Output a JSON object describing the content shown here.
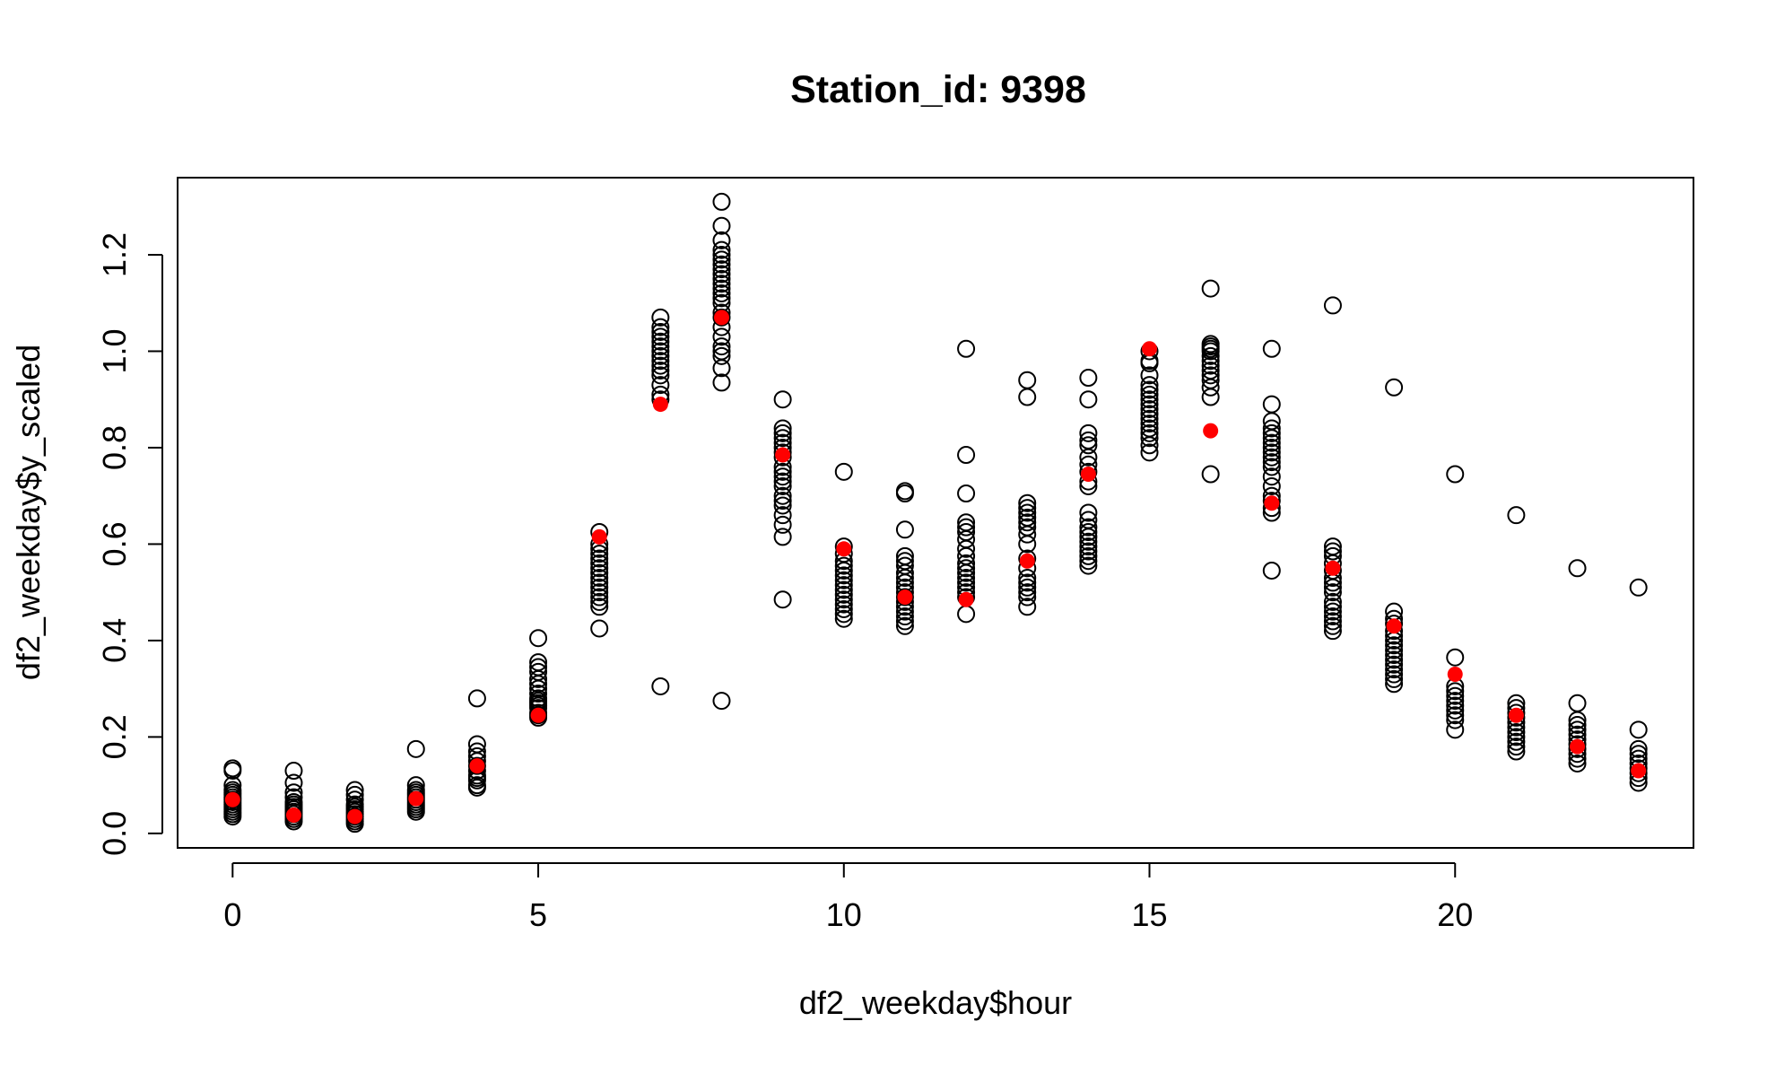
{
  "chart_data": {
    "type": "scatter",
    "title": "Station_id: 9398",
    "xlabel": "df2_weekday$hour",
    "ylabel": "df2_weekday$y_scaled",
    "xlim": [
      -0.9,
      23.9
    ],
    "ylim": [
      -0.03,
      1.36
    ],
    "x_ticks": [
      0,
      5,
      10,
      15,
      20
    ],
    "y_ticks": [
      0.0,
      0.2,
      0.4,
      0.6,
      0.8,
      1.0,
      1.2
    ],
    "x_tick_labels": [
      "0",
      "5",
      "10",
      "15",
      "20"
    ],
    "y_tick_labels": [
      "0.0",
      "0.2",
      "0.4",
      "0.6",
      "0.8",
      "1.0",
      "1.2"
    ],
    "grid": false,
    "legend": "none",
    "series": [
      {
        "marker": "open-circle",
        "color": "#000000",
        "by_hour": [
          {
            "x": 0,
            "y": [
              0.035,
              0.04,
              0.045,
              0.05,
              0.055,
              0.06,
              0.065,
              0.07,
              0.075,
              0.08,
              0.085,
              0.09,
              0.1,
              0.13,
              0.135
            ]
          },
          {
            "x": 1,
            "y": [
              0.025,
              0.03,
              0.035,
              0.04,
              0.045,
              0.05,
              0.055,
              0.06,
              0.065,
              0.075,
              0.085,
              0.105,
              0.13
            ]
          },
          {
            "x": 2,
            "y": [
              0.02,
              0.025,
              0.03,
              0.035,
              0.04,
              0.045,
              0.05,
              0.055,
              0.06,
              0.07,
              0.08,
              0.09
            ]
          },
          {
            "x": 3,
            "y": [
              0.045,
              0.05,
              0.055,
              0.06,
              0.065,
              0.07,
              0.075,
              0.08,
              0.085,
              0.09,
              0.1,
              0.175
            ]
          },
          {
            "x": 4,
            "y": [
              0.095,
              0.1,
              0.11,
              0.115,
              0.12,
              0.13,
              0.14,
              0.15,
              0.16,
              0.17,
              0.185,
              0.28
            ]
          },
          {
            "x": 5,
            "y": [
              0.24,
              0.245,
              0.25,
              0.26,
              0.265,
              0.27,
              0.275,
              0.28,
              0.29,
              0.3,
              0.31,
              0.32,
              0.335,
              0.345,
              0.355,
              0.405
            ]
          },
          {
            "x": 6,
            "y": [
              0.425,
              0.47,
              0.48,
              0.49,
              0.5,
              0.51,
              0.52,
              0.53,
              0.54,
              0.55,
              0.56,
              0.57,
              0.58,
              0.59,
              0.6,
              0.625
            ]
          },
          {
            "x": 7,
            "y": [
              0.305,
              0.9,
              0.91,
              0.93,
              0.95,
              0.96,
              0.97,
              0.98,
              0.99,
              1.0,
              1.01,
              1.02,
              1.03,
              1.04,
              1.05,
              1.07
            ]
          },
          {
            "x": 8,
            "y": [
              0.275,
              0.935,
              0.965,
              0.99,
              1.0,
              1.01,
              1.03,
              1.05,
              1.07,
              1.08,
              1.1,
              1.11,
              1.12,
              1.13,
              1.14,
              1.15,
              1.16,
              1.17,
              1.18,
              1.19,
              1.2,
              1.21,
              1.23,
              1.26,
              1.31
            ]
          },
          {
            "x": 9,
            "y": [
              0.485,
              0.615,
              0.64,
              0.66,
              0.68,
              0.69,
              0.7,
              0.72,
              0.73,
              0.74,
              0.75,
              0.76,
              0.78,
              0.79,
              0.8,
              0.81,
              0.82,
              0.83,
              0.84,
              0.9
            ]
          },
          {
            "x": 10,
            "y": [
              0.445,
              0.455,
              0.465,
              0.475,
              0.485,
              0.495,
              0.505,
              0.515,
              0.525,
              0.535,
              0.545,
              0.555,
              0.565,
              0.58,
              0.595,
              0.75
            ]
          },
          {
            "x": 11,
            "y": [
              0.43,
              0.44,
              0.45,
              0.46,
              0.47,
              0.48,
              0.49,
              0.5,
              0.51,
              0.52,
              0.53,
              0.54,
              0.555,
              0.565,
              0.575,
              0.63,
              0.705,
              0.71
            ]
          },
          {
            "x": 12,
            "y": [
              0.455,
              0.49,
              0.5,
              0.51,
              0.52,
              0.53,
              0.54,
              0.55,
              0.56,
              0.575,
              0.59,
              0.61,
              0.625,
              0.635,
              0.645,
              0.705,
              0.785,
              1.005
            ]
          },
          {
            "x": 13,
            "y": [
              0.47,
              0.49,
              0.5,
              0.51,
              0.52,
              0.53,
              0.55,
              0.57,
              0.6,
              0.62,
              0.635,
              0.645,
              0.655,
              0.665,
              0.675,
              0.685,
              0.905,
              0.94
            ]
          },
          {
            "x": 14,
            "y": [
              0.555,
              0.565,
              0.575,
              0.585,
              0.595,
              0.605,
              0.615,
              0.625,
              0.635,
              0.65,
              0.665,
              0.72,
              0.73,
              0.75,
              0.765,
              0.78,
              0.805,
              0.815,
              0.83,
              0.9,
              0.945
            ]
          },
          {
            "x": 15,
            "y": [
              0.79,
              0.805,
              0.82,
              0.83,
              0.84,
              0.85,
              0.86,
              0.87,
              0.88,
              0.89,
              0.9,
              0.91,
              0.92,
              0.93,
              0.95,
              0.975,
              0.98,
              1.0
            ]
          },
          {
            "x": 16,
            "y": [
              0.745,
              0.905,
              0.925,
              0.94,
              0.95,
              0.96,
              0.97,
              0.98,
              0.99,
              1.0,
              1.005,
              1.01,
              1.015,
              1.13
            ]
          },
          {
            "x": 17,
            "y": [
              0.545,
              0.665,
              0.675,
              0.69,
              0.7,
              0.72,
              0.74,
              0.76,
              0.77,
              0.78,
              0.79,
              0.8,
              0.81,
              0.82,
              0.83,
              0.84,
              0.855,
              0.89,
              1.005
            ]
          },
          {
            "x": 18,
            "y": [
              0.42,
              0.43,
              0.44,
              0.45,
              0.46,
              0.47,
              0.48,
              0.5,
              0.51,
              0.52,
              0.53,
              0.545,
              0.56,
              0.575,
              0.585,
              0.595,
              1.095
            ]
          },
          {
            "x": 19,
            "y": [
              0.31,
              0.32,
              0.33,
              0.34,
              0.35,
              0.36,
              0.37,
              0.38,
              0.39,
              0.4,
              0.41,
              0.42,
              0.435,
              0.445,
              0.46,
              0.925
            ]
          },
          {
            "x": 20,
            "y": [
              0.215,
              0.235,
              0.245,
              0.255,
              0.265,
              0.275,
              0.285,
              0.295,
              0.305,
              0.365,
              0.745
            ]
          },
          {
            "x": 21,
            "y": [
              0.17,
              0.18,
              0.19,
              0.2,
              0.21,
              0.22,
              0.23,
              0.24,
              0.25,
              0.26,
              0.27,
              0.66
            ]
          },
          {
            "x": 22,
            "y": [
              0.145,
              0.155,
              0.165,
              0.175,
              0.185,
              0.195,
              0.205,
              0.215,
              0.225,
              0.235,
              0.27,
              0.55
            ]
          },
          {
            "x": 23,
            "y": [
              0.105,
              0.115,
              0.125,
              0.135,
              0.145,
              0.155,
              0.165,
              0.175,
              0.215,
              0.51
            ]
          }
        ]
      },
      {
        "marker": "filled-circle",
        "color": "#ff0000",
        "points": [
          {
            "x": 0,
            "y": 0.07
          },
          {
            "x": 1,
            "y": 0.038
          },
          {
            "x": 2,
            "y": 0.035
          },
          {
            "x": 3,
            "y": 0.072
          },
          {
            "x": 4,
            "y": 0.14
          },
          {
            "x": 5,
            "y": 0.245
          },
          {
            "x": 6,
            "y": 0.615
          },
          {
            "x": 7,
            "y": 0.89
          },
          {
            "x": 8,
            "y": 1.07
          },
          {
            "x": 9,
            "y": 0.785
          },
          {
            "x": 10,
            "y": 0.59
          },
          {
            "x": 11,
            "y": 0.49
          },
          {
            "x": 12,
            "y": 0.485
          },
          {
            "x": 13,
            "y": 0.565
          },
          {
            "x": 14,
            "y": 0.745
          },
          {
            "x": 15,
            "y": 1.005
          },
          {
            "x": 16,
            "y": 0.835
          },
          {
            "x": 17,
            "y": 0.685
          },
          {
            "x": 18,
            "y": 0.55
          },
          {
            "x": 19,
            "y": 0.43
          },
          {
            "x": 20,
            "y": 0.33
          },
          {
            "x": 21,
            "y": 0.245
          },
          {
            "x": 22,
            "y": 0.18
          },
          {
            "x": 23,
            "y": 0.13
          }
        ]
      }
    ]
  }
}
